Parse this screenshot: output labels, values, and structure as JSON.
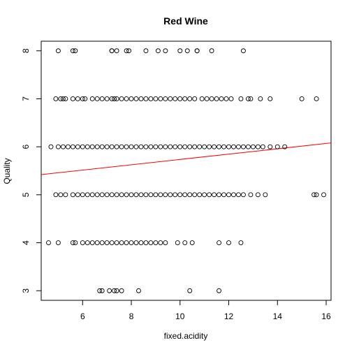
{
  "chart_data": {
    "type": "scatter",
    "title": "Red Wine",
    "xlabel": "fixed.acidity",
    "ylabel": "Quality",
    "xlim": [
      4.3,
      16.2
    ],
    "ylim": [
      2.8,
      8.2
    ],
    "xticks": [
      6,
      8,
      10,
      12,
      14,
      16
    ],
    "yticks": [
      3,
      4,
      5,
      6,
      7,
      8
    ],
    "point_style": "open-circle",
    "regression_line": {
      "color": "#ff0000",
      "x": [
        4.3,
        16.2
      ],
      "y": [
        5.42,
        6.08
      ]
    },
    "series": [
      {
        "quality": 8,
        "x": [
          5.0,
          5.6,
          5.7,
          7.2,
          7.2,
          7.4,
          7.8,
          7.9,
          8.6,
          9.1,
          9.4,
          10.0,
          10.3,
          10.7,
          10.7,
          11.3,
          12.6
        ]
      },
      {
        "quality": 7,
        "x": [
          4.9,
          5.1,
          5.2,
          5.3,
          5.6,
          5.8,
          6.0,
          6.1,
          6.4,
          6.6,
          6.8,
          7.0,
          7.2,
          7.3,
          7.4,
          7.6,
          7.8,
          8.0,
          8.2,
          8.4,
          8.6,
          8.8,
          9.0,
          9.2,
          9.4,
          9.6,
          9.8,
          10.0,
          10.2,
          10.4,
          10.6,
          10.9,
          11.1,
          11.3,
          11.5,
          11.7,
          11.9,
          12.1,
          12.5,
          12.8,
          12.9,
          13.3,
          13.7,
          15.0,
          15.6
        ]
      },
      {
        "quality": 6,
        "x": [
          4.7,
          5.0,
          5.2,
          5.4,
          5.6,
          5.8,
          6.0,
          6.2,
          6.4,
          6.6,
          6.8,
          7.0,
          7.2,
          7.4,
          7.6,
          7.8,
          8.0,
          8.2,
          8.4,
          8.6,
          8.8,
          9.0,
          9.2,
          9.4,
          9.6,
          9.8,
          10.0,
          10.2,
          10.4,
          10.6,
          10.8,
          11.0,
          11.2,
          11.4,
          11.6,
          11.8,
          12.0,
          12.2,
          12.4,
          12.6,
          12.8,
          13.0,
          13.2,
          13.4,
          13.7,
          14.0,
          14.3
        ]
      },
      {
        "quality": 5,
        "x": [
          4.9,
          5.1,
          5.3,
          5.6,
          5.8,
          6.0,
          6.2,
          6.4,
          6.6,
          6.8,
          7.0,
          7.2,
          7.4,
          7.6,
          7.8,
          8.0,
          8.2,
          8.4,
          8.6,
          8.8,
          9.0,
          9.2,
          9.4,
          9.6,
          9.8,
          10.0,
          10.2,
          10.4,
          10.6,
          10.8,
          11.0,
          11.2,
          11.4,
          11.6,
          11.8,
          12.0,
          12.2,
          12.4,
          12.6,
          12.9,
          13.2,
          13.5,
          15.5,
          15.6,
          15.9
        ]
      },
      {
        "quality": 4,
        "x": [
          4.6,
          5.0,
          5.6,
          5.7,
          6.0,
          6.2,
          6.4,
          6.6,
          6.8,
          7.0,
          7.2,
          7.4,
          7.6,
          7.8,
          8.0,
          8.2,
          8.4,
          8.6,
          8.8,
          9.0,
          9.2,
          9.4,
          9.9,
          10.2,
          10.5,
          11.6,
          12.0,
          12.5
        ]
      },
      {
        "quality": 3,
        "x": [
          6.7,
          6.8,
          7.1,
          7.3,
          7.4,
          7.6,
          8.3,
          10.4,
          11.6
        ]
      }
    ]
  }
}
